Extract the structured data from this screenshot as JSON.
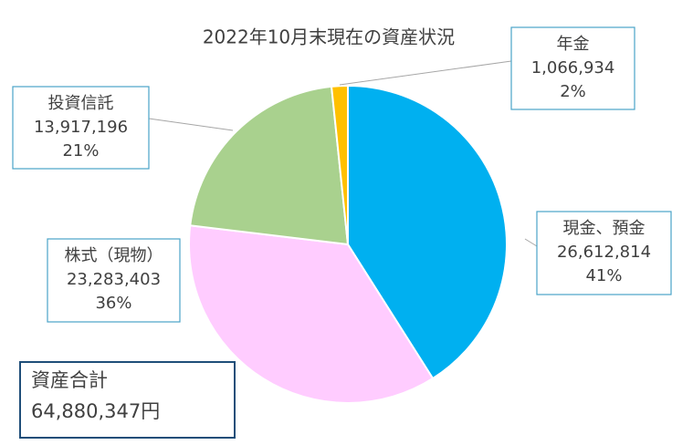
{
  "chart_data": {
    "type": "pie",
    "title": "2022年10月末現在の資産状況",
    "categories": [
      "現金、預金",
      "株式（現物）",
      "投資信託",
      "年金"
    ],
    "values": [
      26612814,
      23283403,
      13917196,
      1066934
    ],
    "value_labels": [
      "26,612,814",
      "23,283,403",
      "13,917,196",
      "1,066,934"
    ],
    "percent_labels": [
      "41%",
      "36%",
      "21%",
      "2%"
    ],
    "colors": [
      "#00b0f0",
      "#ffccff",
      "#a9d18e",
      "#ffc000"
    ],
    "total": {
      "label": "資産合計",
      "value_label": "64,880,347円"
    }
  }
}
